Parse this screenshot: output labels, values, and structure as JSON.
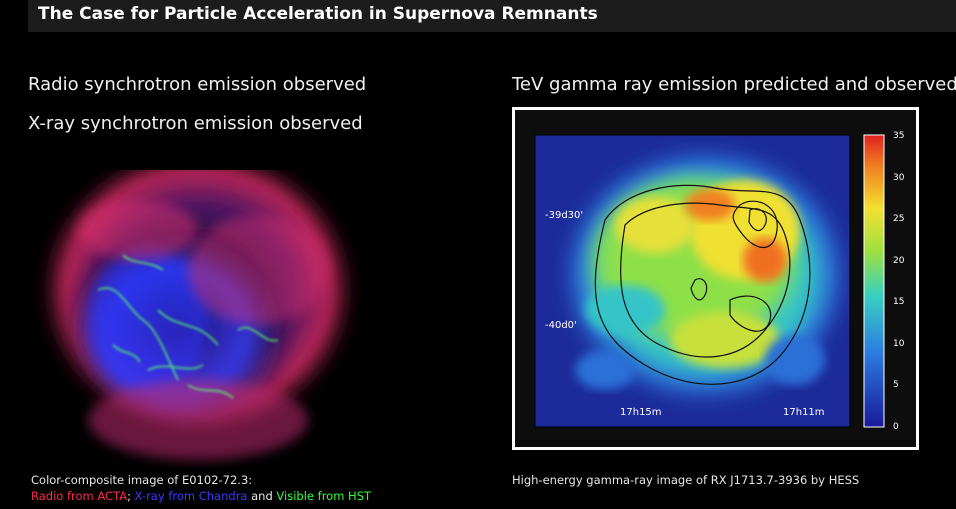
{
  "slide": {
    "title": "The Case for Particle Acceleration in Supernova Remnants"
  },
  "left": {
    "heading1": "Radio synchrotron emission observed",
    "heading2": "X-ray synchrotron emission observed",
    "caption_line1": "Color-composite image of E0102-72.3:",
    "caption_radio": "Radio from ACTA",
    "caption_sep1": "; ",
    "caption_xray": "X-ray from Chandra",
    "caption_and": " and ",
    "caption_visible": "Visible from HST"
  },
  "right": {
    "heading": "TeV gamma ray emission predicted and observed",
    "caption": "High-energy gamma-ray image of RX J1713.7-3936 by HESS",
    "dec_labels": [
      "-39d30'",
      "-40d0'"
    ],
    "ra_labels": [
      "17h15m",
      "17h11m"
    ],
    "colorbar_ticks": [
      "35",
      "30",
      "25",
      "20",
      "15",
      "10",
      "5",
      "0"
    ]
  },
  "colors": {
    "radio": "#ff2a4a",
    "xray": "#3a3aff",
    "visible": "#33ff33",
    "background": "#000000",
    "title_bar": "#1c1c1c"
  }
}
